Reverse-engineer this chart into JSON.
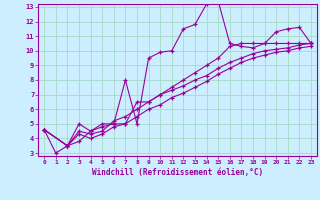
{
  "bg_color": "#cceeff",
  "grid_color": "#aaddcc",
  "line_color": "#990099",
  "xlabel": "Windchill (Refroidissement éolien,°C)",
  "xlim": [
    -0.5,
    23.5
  ],
  "ylim": [
    2.8,
    13.2
  ],
  "xticks": [
    0,
    1,
    2,
    3,
    4,
    5,
    6,
    7,
    8,
    9,
    10,
    11,
    12,
    13,
    14,
    15,
    16,
    17,
    18,
    19,
    20,
    21,
    22,
    23
  ],
  "yticks": [
    3,
    4,
    5,
    6,
    7,
    8,
    9,
    10,
    11,
    12,
    13
  ],
  "series": [
    {
      "x": [
        0,
        1,
        2,
        3,
        4,
        5,
        6,
        7,
        8,
        9,
        10,
        11,
        12,
        13,
        14,
        15,
        16,
        17,
        18,
        19,
        20,
        21,
        22,
        23
      ],
      "y": [
        4.6,
        3.0,
        3.5,
        3.8,
        4.5,
        4.8,
        5.0,
        8.0,
        5.0,
        9.5,
        9.9,
        10.0,
        11.5,
        11.8,
        13.2,
        13.4,
        10.5,
        10.3,
        10.2,
        10.5,
        11.3,
        11.5,
        11.6,
        10.5
      ]
    },
    {
      "x": [
        0,
        2,
        3,
        4,
        5,
        6,
        7,
        8,
        9,
        10,
        11,
        12,
        13,
        14,
        15,
        16,
        17,
        18,
        19,
        20,
        21,
        22,
        23
      ],
      "y": [
        4.6,
        3.5,
        5.0,
        4.5,
        5.0,
        5.0,
        5.0,
        6.5,
        6.5,
        7.0,
        7.5,
        8.0,
        8.5,
        9.0,
        9.5,
        10.3,
        10.5,
        10.5,
        10.5,
        10.5,
        10.5,
        10.5,
        10.5
      ]
    },
    {
      "x": [
        0,
        2,
        3,
        4,
        5,
        6,
        7,
        8,
        9,
        10,
        11,
        12,
        13,
        14,
        15,
        16,
        17,
        18,
        19,
        20,
        21,
        22,
        23
      ],
      "y": [
        4.6,
        3.5,
        4.5,
        4.3,
        4.5,
        5.2,
        5.5,
        6.0,
        6.5,
        7.0,
        7.3,
        7.6,
        8.0,
        8.3,
        8.8,
        9.2,
        9.5,
        9.8,
        10.0,
        10.1,
        10.2,
        10.4,
        10.5
      ]
    },
    {
      "x": [
        0,
        2,
        3,
        4,
        5,
        6,
        7,
        8,
        9,
        10,
        11,
        12,
        13,
        14,
        15,
        16,
        17,
        18,
        19,
        20,
        21,
        22,
        23
      ],
      "y": [
        4.6,
        3.5,
        4.3,
        4.0,
        4.3,
        4.8,
        5.0,
        5.5,
        6.0,
        6.3,
        6.8,
        7.1,
        7.5,
        7.9,
        8.4,
        8.8,
        9.2,
        9.5,
        9.7,
        9.9,
        10.0,
        10.2,
        10.3
      ]
    }
  ]
}
